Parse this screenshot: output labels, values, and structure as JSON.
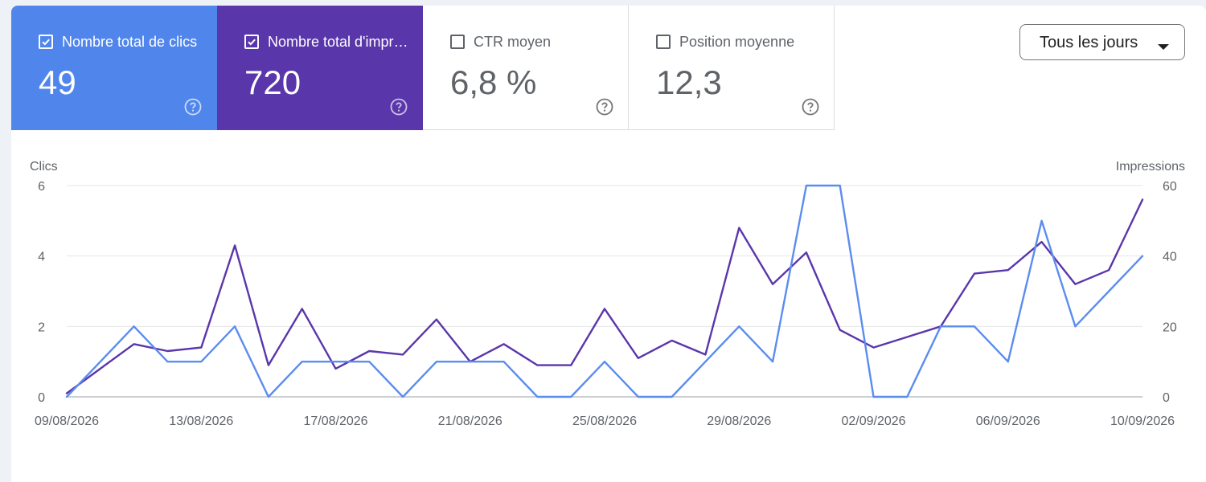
{
  "colors": {
    "clicks": "#5b8def",
    "impressions": "#5a36ab",
    "grid": "#e6e6e6",
    "axis_text": "#5f6368"
  },
  "metrics": [
    {
      "label": "Nombre total de clics",
      "value": "49",
      "checked": true,
      "bg": "#5086ec"
    },
    {
      "label": "Nombre total d'impressions",
      "value": "720",
      "checked": true,
      "bg": "#5a36ab"
    },
    {
      "label": "CTR moyen",
      "value": "6,8 %",
      "checked": false,
      "bg": "#ffffff"
    },
    {
      "label": "Position moyenne",
      "value": "12,3",
      "checked": false,
      "bg": "#ffffff"
    }
  ],
  "icons": {
    "checkbox": "checkbox-icon",
    "help": "help-circle-icon",
    "dropdown": "caret-down-icon"
  },
  "dropdown": {
    "label": "Tous les jours"
  },
  "chart_data": {
    "type": "line",
    "y_left_label": "Clics",
    "y_right_label": "Impressions",
    "ylim_left": [
      0,
      6
    ],
    "ylim_right": [
      0,
      60
    ],
    "y_left_ticks": [
      0,
      2,
      4,
      6
    ],
    "y_right_ticks": [
      0,
      20,
      40,
      60
    ],
    "x_tick_labels": [
      "09/08/2026",
      "13/08/2026",
      "17/08/2026",
      "21/08/2026",
      "25/08/2026",
      "29/08/2026",
      "02/09/2026",
      "06/09/2026",
      "10/09/2026"
    ],
    "x": [
      "09/08/2026",
      "10/08/2026",
      "11/08/2026",
      "12/08/2026",
      "13/08/2026",
      "14/08/2026",
      "15/08/2026",
      "16/08/2026",
      "17/08/2026",
      "18/08/2026",
      "19/08/2026",
      "20/08/2026",
      "21/08/2026",
      "22/08/2026",
      "23/08/2026",
      "24/08/2026",
      "25/08/2026",
      "26/08/2026",
      "27/08/2026",
      "28/08/2026",
      "29/08/2026",
      "30/08/2026",
      "31/08/2026",
      "01/09/2026",
      "02/09/2026",
      "03/09/2026",
      "04/09/2026",
      "05/09/2026",
      "06/09/2026",
      "07/09/2026",
      "08/09/2026",
      "09/09/2026",
      "10/09/2026"
    ],
    "grid": true,
    "series": [
      {
        "name": "Clics",
        "axis": "left",
        "values": [
          0,
          1,
          2,
          1,
          1,
          2,
          0,
          1,
          1,
          1,
          0,
          1,
          1,
          1,
          0,
          0,
          1,
          0,
          0,
          1,
          2,
          1,
          6,
          6,
          0,
          0,
          2,
          2,
          1,
          5,
          2,
          3,
          4
        ]
      },
      {
        "name": "Impressions",
        "axis": "right",
        "values": [
          1,
          8,
          15,
          13,
          14,
          43,
          9,
          25,
          8,
          13,
          12,
          22,
          10,
          15,
          9,
          9,
          25,
          11,
          16,
          12,
          48,
          32,
          41,
          19,
          14,
          17,
          20,
          35,
          36,
          44,
          32,
          36,
          56
        ]
      }
    ]
  }
}
